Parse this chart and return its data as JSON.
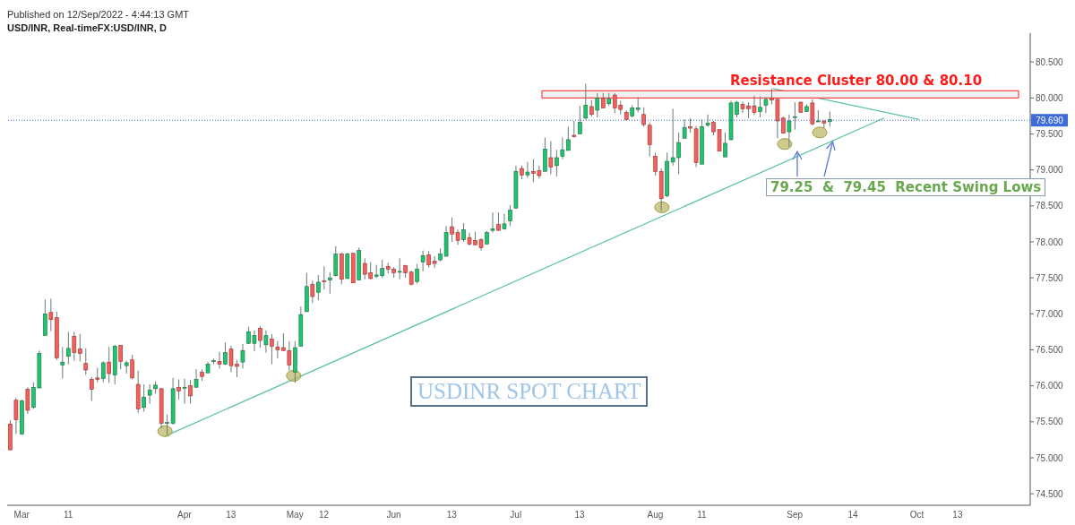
{
  "chart_data": {
    "type": "candlestick",
    "title": "USD/INR, Real-timeFX:USD/INR, D",
    "annotations": [
      "Published on 12/Sep/2022 - 4:44:13 GMT",
      "79.25  &  79.45  Recent Swing Lows",
      "USDINR SPOT CHART"
    ],
    "categories": [
      null,
      null,
      "Mar",
      null,
      null,
      null,
      null,
      null,
      null,
      null,
      "11",
      null,
      null,
      null,
      null,
      null,
      null,
      null,
      null,
      null,
      null,
      null,
      null,
      null,
      null,
      null,
      null,
      null,
      null,
      null,
      "Apr",
      null,
      null,
      null,
      null,
      null,
      null,
      null,
      "13",
      null,
      null,
      null,
      null,
      null,
      null,
      null,
      null,
      null,
      null,
      "May",
      null,
      null,
      null,
      null,
      "12",
      null,
      null,
      null,
      null,
      null,
      null,
      null,
      null,
      null,
      null,
      null,
      "Jun",
      null,
      null,
      null,
      null,
      null,
      null,
      null,
      null,
      null,
      "13",
      null,
      null,
      null,
      null,
      null,
      null,
      null,
      null,
      null,
      null,
      "Jul",
      null,
      null,
      null,
      null,
      null,
      null,
      null,
      null,
      null,
      null,
      "13",
      null,
      null,
      null,
      null,
      null,
      null,
      null,
      null,
      null,
      null,
      null,
      null,
      "Aug",
      null,
      null,
      null,
      null,
      null,
      null,
      null,
      "11",
      null,
      null,
      null,
      null,
      null,
      null,
      null,
      null,
      null,
      null,
      null,
      null,
      null,
      null,
      null,
      "Sep",
      null,
      null,
      null,
      null,
      null,
      null,
      null,
      null,
      null,
      "14",
      null,
      null,
      null,
      null,
      null,
      null,
      null,
      null,
      null,
      null,
      "Oct",
      null,
      null,
      null,
      null,
      null,
      null,
      "13",
      null,
      null,
      null,
      null,
      null,
      null,
      null,
      null,
      null,
      null,
      null,
      null
    ],
    "ohlc": [
      [
        75.47,
        75.52,
        75.11,
        75.11
      ],
      [
        75.8,
        75.83,
        75.33,
        75.53
      ],
      [
        75.33,
        75.81,
        75.32,
        75.79
      ],
      [
        75.95,
        75.98,
        75.61,
        75.66
      ],
      [
        75.7,
        76.05,
        75.68,
        75.98
      ],
      [
        75.97,
        76.49,
        75.97,
        76.45
      ],
      [
        76.7,
        77.2,
        76.7,
        77.0
      ],
      [
        77.02,
        77.21,
        76.76,
        76.92
      ],
      [
        76.95,
        77.03,
        76.36,
        76.39
      ],
      [
        76.29,
        76.54,
        76.1,
        76.33
      ],
      [
        76.41,
        76.75,
        76.3,
        76.52
      ],
      [
        76.69,
        76.75,
        76.35,
        76.46
      ],
      [
        76.51,
        76.72,
        76.34,
        76.45
      ],
      [
        76.31,
        76.52,
        76.15,
        76.22
      ],
      [
        76.09,
        76.12,
        75.79,
        75.95
      ],
      [
        76.11,
        76.25,
        76.05,
        76.09
      ],
      [
        76.1,
        76.34,
        76.05,
        76.32
      ],
      [
        76.33,
        76.54,
        76.04,
        76.17
      ],
      [
        76.15,
        76.57,
        76.02,
        76.55
      ],
      [
        76.56,
        76.57,
        76.23,
        76.34
      ],
      [
        76.28,
        76.35,
        76.17,
        76.32
      ],
      [
        76.36,
        76.43,
        76.09,
        76.11
      ],
      [
        76.02,
        76.21,
        75.62,
        75.68
      ],
      [
        75.7,
        76.02,
        75.64,
        75.84
      ],
      [
        75.87,
        76.02,
        75.75,
        75.94
      ],
      [
        75.96,
        76.06,
        75.89,
        76.01
      ],
      [
        75.96,
        75.97,
        75.41,
        75.48
      ],
      [
        75.48,
        75.6,
        75.32,
        75.49
      ],
      [
        75.48,
        76.11,
        75.46,
        75.96
      ],
      [
        75.98,
        76.09,
        75.81,
        75.93
      ],
      [
        75.97,
        76.1,
        75.75,
        75.98
      ],
      [
        76.0,
        76.08,
        75.75,
        75.86
      ],
      [
        75.98,
        76.23,
        75.98,
        76.09
      ],
      [
        76.19,
        76.23,
        76.07,
        76.13
      ],
      [
        76.18,
        76.33,
        76.18,
        76.3
      ],
      [
        76.34,
        76.38,
        76.3,
        76.35
      ],
      [
        76.34,
        76.47,
        76.24,
        76.3
      ],
      [
        76.3,
        76.6,
        76.29,
        76.46
      ],
      [
        76.51,
        76.56,
        76.19,
        76.28
      ],
      [
        76.3,
        76.36,
        76.12,
        76.27
      ],
      [
        76.33,
        76.58,
        76.24,
        76.49
      ],
      [
        76.59,
        76.82,
        76.58,
        76.75
      ],
      [
        76.59,
        76.77,
        76.48,
        76.7
      ],
      [
        76.8,
        76.83,
        76.53,
        76.63
      ],
      [
        76.57,
        76.77,
        76.46,
        76.7
      ],
      [
        76.65,
        76.72,
        76.3,
        76.55
      ],
      [
        76.54,
        76.62,
        76.38,
        76.5
      ],
      [
        76.53,
        76.73,
        76.49,
        76.49
      ],
      [
        76.49,
        76.62,
        76.21,
        76.29
      ],
      [
        76.19,
        76.62,
        76.04,
        76.53
      ],
      [
        76.55,
        77.1,
        76.55,
        76.99
      ],
      [
        77.03,
        77.57,
        77.03,
        77.38
      ],
      [
        77.41,
        77.46,
        77.15,
        77.24
      ],
      [
        77.3,
        77.54,
        77.19,
        77.44
      ],
      [
        77.46,
        77.66,
        77.34,
        77.45
      ],
      [
        77.47,
        77.58,
        77.28,
        77.5
      ],
      [
        77.53,
        77.94,
        77.52,
        77.83
      ],
      [
        77.83,
        77.85,
        77.41,
        77.48
      ],
      [
        77.49,
        77.85,
        77.49,
        77.83
      ],
      [
        77.84,
        77.85,
        77.43,
        77.43
      ],
      [
        77.47,
        77.92,
        77.47,
        77.88
      ],
      [
        77.7,
        77.77,
        77.48,
        77.55
      ],
      [
        77.57,
        77.72,
        77.48,
        77.49
      ],
      [
        77.52,
        77.68,
        77.5,
        77.54
      ],
      [
        77.53,
        77.75,
        77.5,
        77.63
      ],
      [
        77.66,
        77.71,
        77.56,
        77.62
      ],
      [
        77.62,
        77.65,
        77.5,
        77.57
      ],
      [
        77.58,
        77.77,
        77.48,
        77.59
      ],
      [
        77.67,
        77.68,
        77.5,
        77.57
      ],
      [
        77.58,
        77.6,
        77.4,
        77.41
      ],
      [
        77.45,
        77.69,
        77.42,
        77.62
      ],
      [
        77.72,
        77.88,
        77.59,
        77.81
      ],
      [
        77.82,
        77.87,
        77.64,
        77.68
      ],
      [
        77.73,
        77.8,
        77.64,
        77.7
      ],
      [
        77.75,
        77.91,
        77.73,
        77.83
      ],
      [
        77.8,
        78.22,
        77.8,
        78.13
      ],
      [
        78.21,
        78.34,
        78.0,
        78.11
      ],
      [
        78.13,
        78.17,
        77.96,
        78.02
      ],
      [
        78.03,
        78.26,
        78.0,
        78.17
      ],
      [
        78.06,
        78.13,
        77.95,
        77.97
      ],
      [
        78.02,
        78.14,
        77.95,
        77.96
      ],
      [
        78.03,
        78.05,
        77.88,
        77.92
      ],
      [
        77.97,
        78.15,
        77.97,
        78.13
      ],
      [
        78.16,
        78.41,
        78.13,
        78.18
      ],
      [
        78.24,
        78.41,
        78.15,
        78.16
      ],
      [
        78.18,
        78.39,
        78.17,
        78.25
      ],
      [
        78.29,
        78.51,
        78.22,
        78.44
      ],
      [
        78.47,
        79.06,
        78.46,
        78.98
      ],
      [
        79.02,
        79.06,
        78.87,
        78.93
      ],
      [
        78.93,
        79.11,
        78.89,
        78.97
      ],
      [
        78.98,
        79.15,
        78.83,
        78.95
      ],
      [
        78.99,
        79.06,
        78.88,
        78.92
      ],
      [
        78.98,
        79.45,
        78.98,
        79.29
      ],
      [
        79.17,
        79.4,
        78.94,
        79.04
      ],
      [
        79.06,
        79.28,
        78.91,
        79.17
      ],
      [
        79.19,
        79.45,
        79.15,
        79.28
      ],
      [
        79.27,
        79.6,
        79.27,
        79.42
      ],
      [
        79.48,
        79.68,
        79.45,
        79.46
      ],
      [
        79.5,
        79.89,
        79.5,
        79.66
      ],
      [
        79.72,
        80.2,
        79.7,
        79.9
      ],
      [
        79.88,
        79.97,
        79.74,
        79.77
      ],
      [
        79.83,
        80.07,
        79.73,
        80.0
      ],
      [
        80.0,
        80.07,
        79.86,
        79.86
      ],
      [
        79.92,
        80.07,
        79.89,
        79.99
      ],
      [
        80.04,
        80.07,
        79.79,
        79.86
      ],
      [
        79.9,
        79.96,
        79.77,
        79.84
      ],
      [
        79.8,
        79.83,
        79.69,
        79.7
      ],
      [
        79.75,
        79.9,
        79.73,
        79.86
      ],
      [
        79.84,
        80.01,
        79.8,
        79.86
      ],
      [
        79.77,
        79.87,
        79.6,
        79.63
      ],
      [
        79.62,
        79.66,
        79.19,
        79.35
      ],
      [
        79.19,
        79.24,
        78.92,
        78.98
      ],
      [
        78.98,
        79.02,
        78.43,
        78.6
      ],
      [
        78.64,
        79.24,
        78.62,
        79.12
      ],
      [
        79.11,
        79.85,
        79.06,
        79.17
      ],
      [
        79.17,
        79.52,
        78.94,
        79.38
      ],
      [
        79.44,
        79.7,
        79.44,
        79.59
      ],
      [
        79.6,
        79.72,
        79.52,
        79.58
      ],
      [
        79.57,
        79.61,
        79.04,
        79.1
      ],
      [
        79.08,
        79.7,
        79.08,
        79.6
      ],
      [
        79.62,
        79.77,
        79.6,
        79.65
      ],
      [
        79.66,
        79.68,
        79.48,
        79.53
      ],
      [
        79.56,
        79.56,
        79.26,
        79.26
      ],
      [
        79.18,
        79.52,
        79.18,
        79.37
      ],
      [
        79.42,
        79.96,
        79.41,
        79.93
      ],
      [
        79.77,
        79.96,
        79.73,
        79.94
      ],
      [
        79.91,
        79.95,
        79.79,
        79.85
      ],
      [
        79.89,
        79.94,
        79.72,
        79.85
      ],
      [
        79.89,
        80.03,
        79.76,
        79.8
      ],
      [
        79.81,
        80.02,
        79.73,
        79.87
      ],
      [
        79.9,
        80.01,
        79.79,
        79.98
      ],
      [
        80.0,
        80.13,
        79.91,
        79.97
      ],
      [
        79.98,
        79.99,
        79.44,
        79.68
      ],
      [
        79.72,
        79.74,
        79.51,
        79.51
      ],
      [
        79.53,
        79.77,
        79.32,
        79.68
      ],
      [
        79.73,
        79.94,
        79.56,
        79.74
      ],
      [
        79.94,
        79.95,
        79.79,
        79.8
      ],
      [
        79.81,
        79.91,
        79.81,
        79.88
      ],
      [
        79.93,
        79.98,
        79.62,
        79.64
      ],
      [
        79.67,
        79.83,
        79.67,
        79.68
      ],
      [
        79.68,
        79.69,
        79.58,
        79.65
      ],
      [
        79.67,
        79.81,
        79.6,
        79.7
      ],
      null,
      null,
      null,
      null,
      null,
      null,
      null,
      null,
      null,
      null,
      null,
      null,
      null,
      null,
      null,
      null,
      null,
      null,
      null,
      null,
      null,
      null,
      null,
      null,
      null,
      null,
      null,
      null,
      null,
      null,
      null,
      null,
      null,
      null
    ],
    "series": [
      {
        "type": "line",
        "color": "#5cc2a4",
        "values": [
          null,
          null,
          null,
          null,
          null,
          null,
          null,
          null,
          null,
          null,
          null,
          null,
          null,
          null,
          null,
          null,
          null,
          null,
          null,
          null,
          null,
          null,
          null,
          null,
          null,
          null,
          null,
          75.3,
          null,
          null,
          null,
          null,
          null,
          null,
          null,
          null,
          null,
          null,
          null,
          null,
          null,
          null,
          null,
          null,
          null,
          null,
          null,
          null,
          null,
          null,
          null,
          null,
          null,
          null,
          null,
          null,
          null,
          null,
          null,
          null,
          null,
          null,
          null,
          null,
          null,
          null,
          null,
          null,
          null,
          null,
          null,
          null,
          null,
          null,
          null,
          null,
          null,
          null,
          null,
          null,
          null,
          null,
          null,
          null,
          null,
          null,
          null,
          null,
          null,
          null,
          null,
          null,
          null,
          null,
          null,
          null,
          null,
          null,
          null,
          null,
          null,
          null,
          null,
          null,
          null,
          null,
          null,
          null,
          null,
          null,
          null,
          null,
          null,
          null,
          null,
          null,
          null,
          null,
          null,
          null,
          null,
          null,
          null,
          null,
          null,
          null,
          null,
          null,
          null,
          null,
          null,
          null,
          null,
          null,
          null,
          null,
          null,
          null,
          null,
          null,
          null,
          null,
          null,
          null,
          null,
          null,
          null,
          null,
          null,
          null,
          79.72,
          null,
          null,
          null,
          null,
          null,
          null,
          null,
          null,
          null,
          null,
          null,
          null,
          null,
          null,
          null,
          null,
          null,
          null,
          null,
          null,
          null,
          null,
          null,
          null,
          null
        ]
      },
      {
        "type": "line",
        "color": "#5cc2a4",
        "values": [
          null,
          null,
          null,
          null,
          null,
          null,
          null,
          null,
          null,
          null,
          null,
          null,
          null,
          null,
          null,
          null,
          null,
          null,
          null,
          null,
          null,
          null,
          null,
          null,
          null,
          null,
          null,
          null,
          null,
          null,
          null,
          null,
          null,
          null,
          null,
          null,
          null,
          null,
          null,
          null,
          null,
          null,
          null,
          null,
          null,
          null,
          null,
          null,
          null,
          null,
          null,
          null,
          null,
          null,
          null,
          null,
          null,
          null,
          null,
          null,
          null,
          null,
          null,
          null,
          null,
          null,
          null,
          null,
          null,
          null,
          null,
          null,
          null,
          null,
          null,
          null,
          null,
          null,
          null,
          null,
          null,
          null,
          null,
          null,
          null,
          null,
          null,
          null,
          null,
          null,
          null,
          null,
          null,
          null,
          null,
          null,
          null,
          null,
          null,
          null,
          null,
          null,
          null,
          null,
          null,
          null,
          null,
          null,
          null,
          null,
          null,
          null,
          null,
          null,
          null,
          null,
          null,
          null,
          null,
          null,
          null,
          null,
          null,
          null,
          null,
          null,
          null,
          null,
          null,
          null,
          null,
          80.13,
          null,
          null,
          null,
          null,
          null,
          null,
          null,
          null,
          null,
          null,
          null,
          null,
          null,
          null,
          null,
          null,
          null,
          null,
          null,
          null,
          null,
          null,
          null,
          null,
          79.7,
          null,
          null,
          null,
          null,
          null,
          null,
          null,
          null,
          null,
          null,
          null,
          null,
          null,
          null,
          null,
          null,
          null,
          null,
          null
        ]
      },
      {
        "type": "scatter",
        "color": "#bfb96a",
        "marker": "circle",
        "values": [
          null,
          null,
          null,
          null,
          null,
          null,
          null,
          null,
          null,
          null,
          null,
          null,
          null,
          null,
          null,
          null,
          null,
          null,
          null,
          null,
          null,
          null,
          null,
          null,
          null,
          null,
          null,
          75.37,
          null,
          null,
          null,
          null,
          null,
          null,
          null,
          null,
          null,
          null,
          null,
          null,
          null,
          null,
          null,
          null,
          null,
          null,
          null,
          null,
          null,
          76.14,
          null,
          null,
          null,
          null,
          null,
          null,
          null,
          null,
          null,
          null,
          null,
          null,
          null,
          null,
          null,
          null,
          null,
          null,
          null,
          null,
          null,
          null,
          null,
          null,
          null,
          null,
          null,
          null,
          null,
          null,
          null,
          null,
          null,
          null,
          null,
          null,
          null,
          null,
          null,
          null,
          null,
          null,
          null,
          null,
          null,
          null,
          null,
          null,
          null,
          null,
          null,
          null,
          null,
          null,
          null,
          null,
          null,
          null,
          null,
          null,
          null,
          null,
          78.48,
          null,
          null,
          null,
          null,
          null,
          null,
          null,
          null,
          null,
          null,
          null,
          null,
          null,
          null,
          null,
          null,
          null,
          null,
          null,
          null,
          79.36,
          null,
          null,
          null,
          null,
          null,
          79.52,
          null,
          null,
          null,
          null,
          null,
          null,
          null,
          null,
          null,
          null,
          null,
          null,
          null,
          null,
          null,
          null,
          null,
          null,
          null,
          null,
          null,
          null,
          null,
          null,
          null,
          null,
          null,
          null,
          null,
          null,
          null,
          null,
          null,
          null,
          null,
          null
        ]
      }
    ],
    "ylim": [
      74.34,
      80.9
    ],
    "yticks": [
      {
        "value": 74.5,
        "label": "74.500"
      },
      {
        "value": 75,
        "label": "75.000"
      },
      {
        "value": 75.5,
        "label": "75.500"
      },
      {
        "value": 76,
        "label": "76.000"
      },
      {
        "value": 76.5,
        "label": "76.500"
      },
      {
        "value": 77,
        "label": "77.000"
      },
      {
        "value": 77.5,
        "label": "77.500"
      },
      {
        "value": 78,
        "label": "78.000"
      },
      {
        "value": 78.5,
        "label": "78.500"
      },
      {
        "value": 79,
        "label": "79.000"
      },
      {
        "value": 79.5,
        "label": "79.500"
      },
      {
        "value": 80,
        "label": "80.000"
      },
      {
        "value": 80.5,
        "label": "80.500"
      }
    ],
    "ref_lines": [
      {
        "axis": "y",
        "value": 79.69,
        "label": "79.690",
        "color": "#3d6bd9",
        "line_style": "dotted"
      }
    ],
    "bands": [
      {
        "axis": "y",
        "from": 80.0,
        "to": 80.1,
        "label": "Resistance Cluster 80.00 & 80.10",
        "color": "#ff1a1a"
      }
    ]
  }
}
